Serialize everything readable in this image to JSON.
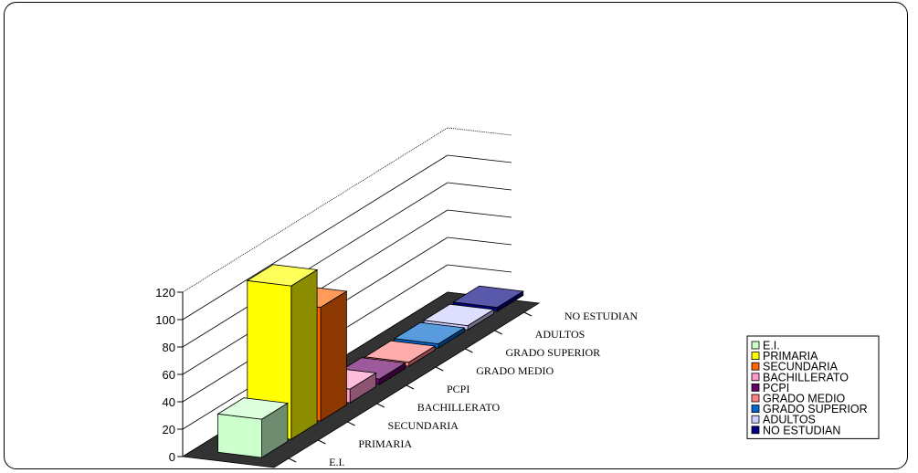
{
  "chart_data": {
    "type": "bar",
    "style": "3d-column",
    "categories": [
      "E.I.",
      "PRIMARIA",
      "SECUNDARIA",
      "BACHILLERATO",
      "PCPI",
      "GRADO MEDIO",
      "GRADO SUPERIOR",
      "ADULTOS",
      "NO ESTUDIAN"
    ],
    "values": [
      28,
      112,
      83,
      10,
      4,
      3,
      3,
      3,
      3
    ],
    "colors": [
      "#ccffcc",
      "#ffff00",
      "#ff6600",
      "#ff99cc",
      "#660066",
      "#ff8080",
      "#0066cc",
      "#ccccff",
      "#000080"
    ],
    "ylim": [
      0,
      120
    ],
    "yticks": [
      "0",
      "20",
      "40",
      "60",
      "80",
      "100",
      "120"
    ],
    "grid": true,
    "floor_color": "#333333",
    "legend": {
      "position": "right",
      "entries": [
        "E.I.",
        "PRIMARIA",
        "SECUNDARIA",
        "BACHILLERATO",
        "PCPI",
        "GRADO MEDIO",
        "GRADO SUPERIOR",
        "ADULTOS",
        "NO ESTUDIAN"
      ]
    }
  }
}
